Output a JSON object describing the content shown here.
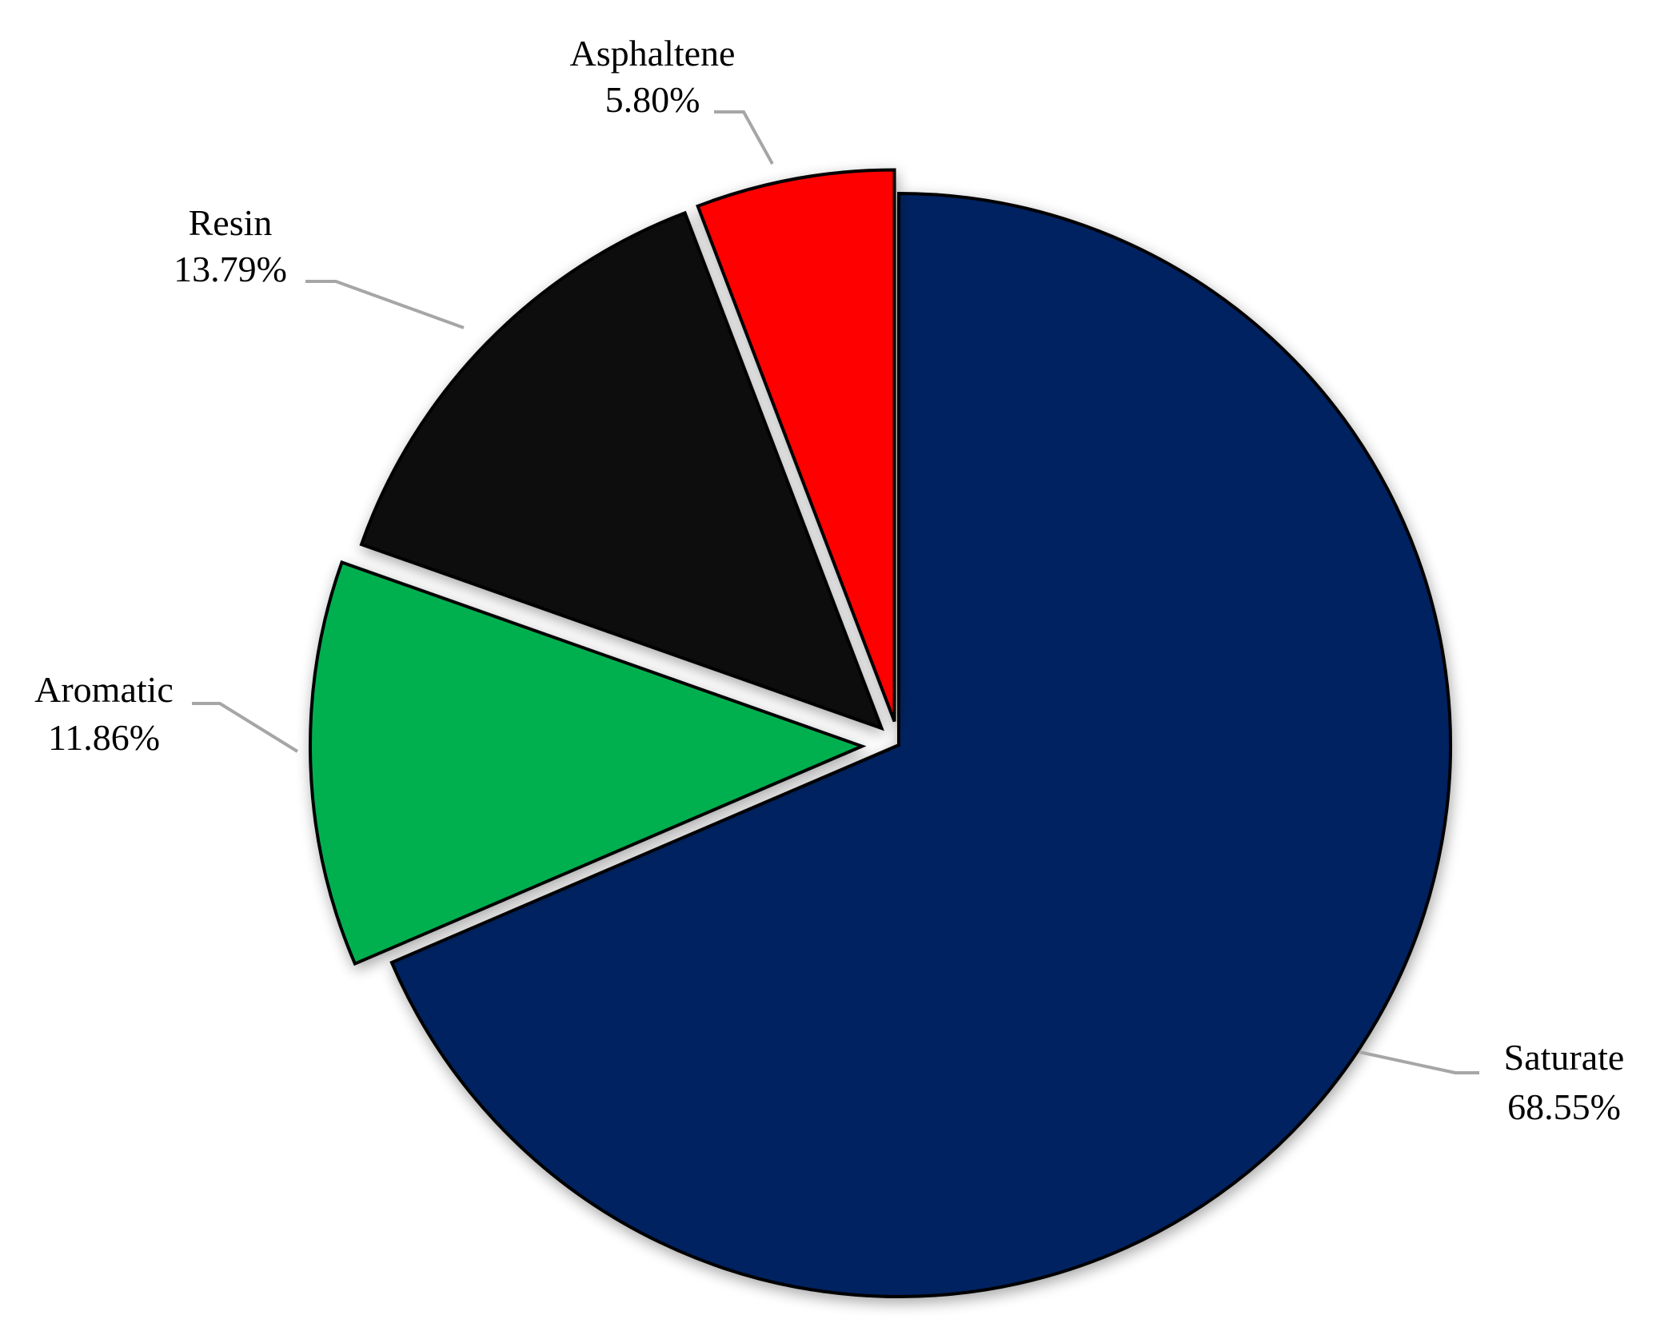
{
  "chart_data": {
    "type": "pie",
    "start_angle_deg": 0,
    "direction": "clockwise",
    "slices": [
      {
        "label": "Saturate",
        "value": 68.55,
        "value_label": "68.55%",
        "color": "#002060"
      },
      {
        "label": "Aromatic",
        "value": 11.86,
        "value_label": "11.86%",
        "color": "#00b050"
      },
      {
        "label": "Resin",
        "value": 13.79,
        "value_label": "13.79%",
        "color": "#0d0d0d"
      },
      {
        "label": "Asphaltene",
        "value": 5.8,
        "value_label": "5.80%",
        "color": "#ff0000"
      }
    ],
    "exploded": true,
    "labels_outside_with_leader_lines": true,
    "slice_border_color": "#000000",
    "leader_line_color": "#a6a6a6",
    "legend": "none"
  }
}
